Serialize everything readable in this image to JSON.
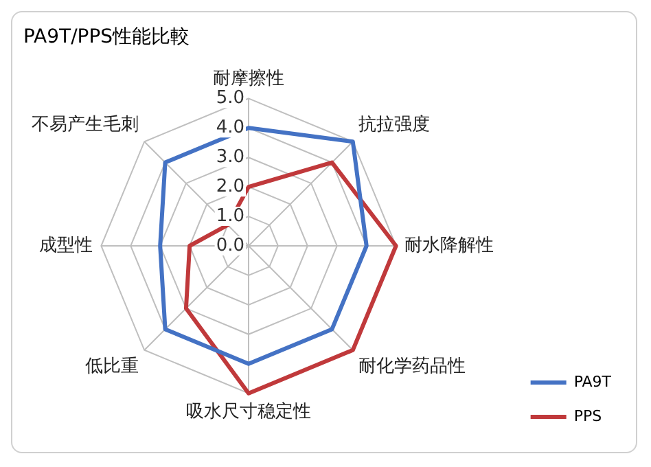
{
  "chart_data": {
    "type": "radar",
    "title": "PA9T/PPS性能比較",
    "categories": [
      "耐摩擦性",
      "抗拉强度",
      "耐水降解性",
      "耐化学药品性",
      "吸水尺寸稳定性",
      "低比重",
      "成型性",
      "不易产生毛刺"
    ],
    "series": [
      {
        "name": "PA9T",
        "color": "#4472c4",
        "values": [
          4,
          5,
          4,
          4,
          4,
          4,
          3,
          4
        ]
      },
      {
        "name": "PPS",
        "color": "#c0393b",
        "values": [
          2,
          4,
          5,
          5,
          5,
          3,
          2,
          1
        ]
      }
    ],
    "ylim": [
      0,
      5
    ],
    "yticks": [
      {
        "value": 0,
        "label": "0.0"
      },
      {
        "value": 1,
        "label": "1.0"
      },
      {
        "value": 2,
        "label": "2.0"
      },
      {
        "value": 3,
        "label": "3.0"
      },
      {
        "value": 4,
        "label": "4.0"
      },
      {
        "value": 5,
        "label": "5.0"
      }
    ],
    "grid": true,
    "legend": "bottom right",
    "marker": "none"
  }
}
